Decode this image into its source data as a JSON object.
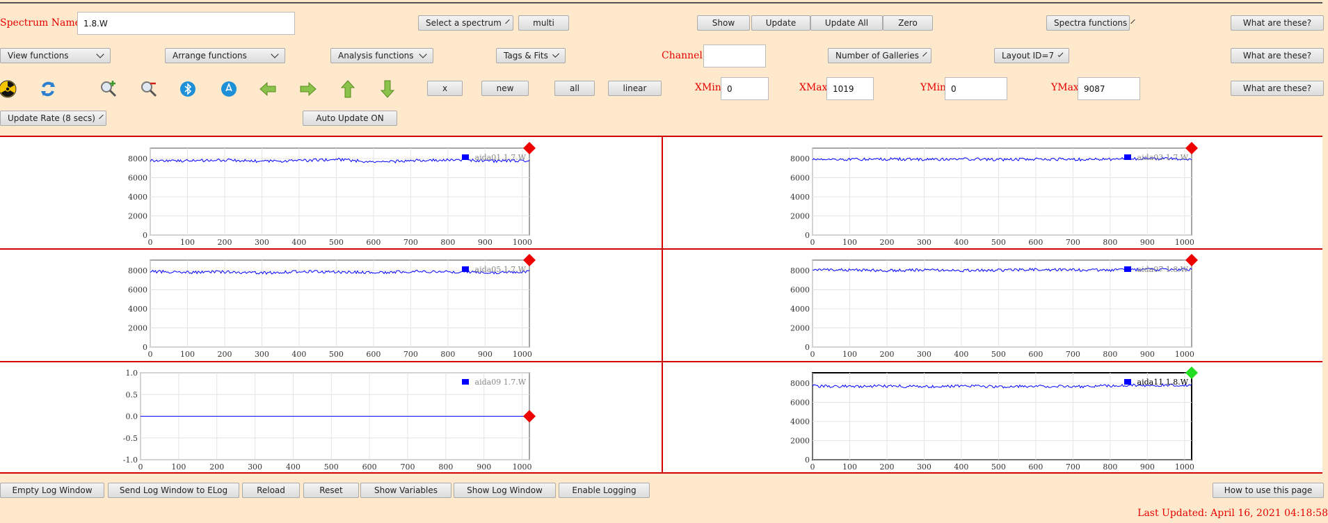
{
  "toolbar": {
    "spectrum_name_label": "Spectrum Name:",
    "spectrum_name_value": "1.8.W",
    "select_spectrum": "Select a spectrum",
    "multi": "multi",
    "show": "Show",
    "update": "Update",
    "update_all": "Update All",
    "zero": "Zero",
    "spectra_functions": "Spectra functions",
    "what_are_these": "What are these?",
    "view_functions": "View functions",
    "arrange_functions": "Arrange functions",
    "analysis_functions": "Analysis functions",
    "tags_fits": "Tags & Fits",
    "channel_label": "Channel:",
    "channel_value": "",
    "number_of_galleries": "Number of Galleries",
    "layout_id": "Layout ID=7",
    "x": "x",
    "new": "new",
    "all": "all",
    "linear": "linear",
    "xmin_label": "XMin",
    "xmin_value": "0",
    "xmax_label": "XMax",
    "xmax_value": "1019",
    "ymin_label": "YMin",
    "ymin_value": "0",
    "ymax_label": "YMax",
    "ymax_value": "9087",
    "update_rate": "Update Rate (8 secs)",
    "auto_update": "Auto Update ON"
  },
  "icons": [
    "radiation-icon",
    "refresh-icon",
    "zoom-in-icon",
    "zoom-out-icon",
    "bluetooth-expand-icon",
    "bluetooth-contract-icon",
    "arrow-left-icon",
    "arrow-right-icon",
    "arrow-up-icon",
    "arrow-down-icon"
  ],
  "bottom": {
    "empty_log": "Empty Log Window",
    "send_log": "Send Log Window to ELog",
    "reload": "Reload",
    "reset": "Reset",
    "show_variables": "Show Variables",
    "show_log": "Show Log Window",
    "enable_logging": "Enable Logging",
    "how_to": "How to use this page",
    "last_updated": "Last Updated: April 16, 2021 04:18:58"
  },
  "chart_data": [
    {
      "type": "line",
      "legend": "aida01 1.7.W",
      "xlim": [
        0,
        1019
      ],
      "ylim": [
        0,
        9087
      ],
      "x_ticks": [
        0,
        100,
        200,
        300,
        400,
        500,
        600,
        700,
        800,
        900,
        1000
      ],
      "y_ticks": [
        0,
        2000,
        4000,
        6000,
        8000
      ],
      "y_tick_labels": [
        "0",
        "2000",
        "4000",
        "6000",
        "8000"
      ],
      "values": [
        7800,
        7750,
        7850,
        7700,
        7800,
        7900,
        7600,
        7800,
        7850,
        7750,
        7800
      ],
      "marker": "red",
      "selected": false,
      "color": "#0000ff"
    },
    {
      "type": "line",
      "legend": "aida03 1.7.W",
      "xlim": [
        0,
        1019
      ],
      "ylim": [
        0,
        9087
      ],
      "x_ticks": [
        0,
        100,
        200,
        300,
        400,
        500,
        600,
        700,
        800,
        900,
        1000
      ],
      "y_ticks": [
        0,
        2000,
        4000,
        6000,
        8000
      ],
      "y_tick_labels": [
        "0",
        "2000",
        "4000",
        "6000",
        "8000"
      ],
      "values": [
        7950,
        7900,
        7950,
        7900,
        7950,
        7900,
        7950,
        7900,
        7950,
        8000,
        7950
      ],
      "marker": "red",
      "selected": false,
      "color": "#0000ff"
    },
    {
      "type": "line",
      "legend": "aida05 1.7.W",
      "xlim": [
        0,
        1019
      ],
      "ylim": [
        0,
        9087
      ],
      "x_ticks": [
        0,
        100,
        200,
        300,
        400,
        500,
        600,
        700,
        800,
        900,
        1000
      ],
      "y_ticks": [
        0,
        2000,
        4000,
        6000,
        8000
      ],
      "y_tick_labels": [
        "0",
        "2000",
        "4000",
        "6000",
        "8000"
      ],
      "values": [
        7900,
        7800,
        7850,
        7750,
        7900,
        7850,
        7800,
        7900,
        7850,
        7800,
        7900
      ],
      "marker": "red",
      "selected": false,
      "color": "#0000ff"
    },
    {
      "type": "line",
      "legend": "aida07 1.8.W",
      "xlim": [
        0,
        1019
      ],
      "ylim": [
        0,
        9087
      ],
      "x_ticks": [
        0,
        100,
        200,
        300,
        400,
        500,
        600,
        700,
        800,
        900,
        1000
      ],
      "y_ticks": [
        0,
        2000,
        4000,
        6000,
        8000
      ],
      "y_tick_labels": [
        "0",
        "2000",
        "4000",
        "6000",
        "8000"
      ],
      "values": [
        8100,
        8050,
        8000,
        8050,
        8000,
        8050,
        8100,
        8050,
        8050,
        8100,
        8100
      ],
      "marker": "red",
      "selected": false,
      "color": "#0000ff"
    },
    {
      "type": "line",
      "legend": "aida09 1.7.W",
      "xlim": [
        0,
        1019
      ],
      "ylim": [
        -1.0,
        1.0
      ],
      "x_ticks": [
        0,
        100,
        200,
        300,
        400,
        500,
        600,
        700,
        800,
        900,
        1000
      ],
      "y_ticks": [
        -1.0,
        -0.5,
        0.0,
        0.5,
        1.0
      ],
      "y_tick_labels": [
        "-1.0",
        "-0.5",
        "0.0",
        "0.5",
        "1.0"
      ],
      "values": [
        0,
        0,
        0,
        0,
        0,
        0,
        0,
        0,
        0,
        0,
        0
      ],
      "marker": "red",
      "selected": false,
      "color": "#0000ff"
    },
    {
      "type": "line",
      "legend": "aida11 1.8.W",
      "xlim": [
        0,
        1019
      ],
      "ylim": [
        0,
        9087
      ],
      "x_ticks": [
        0,
        100,
        200,
        300,
        400,
        500,
        600,
        700,
        800,
        900,
        1000
      ],
      "y_ticks": [
        0,
        2000,
        4000,
        6000,
        8000
      ],
      "y_tick_labels": [
        "0",
        "2000",
        "4000",
        "6000",
        "8000"
      ],
      "values": [
        7700,
        7650,
        7700,
        7650,
        7700,
        7650,
        7700,
        7650,
        7750,
        7800,
        7800
      ],
      "marker": "green",
      "selected": true,
      "color": "#0000ff"
    }
  ]
}
